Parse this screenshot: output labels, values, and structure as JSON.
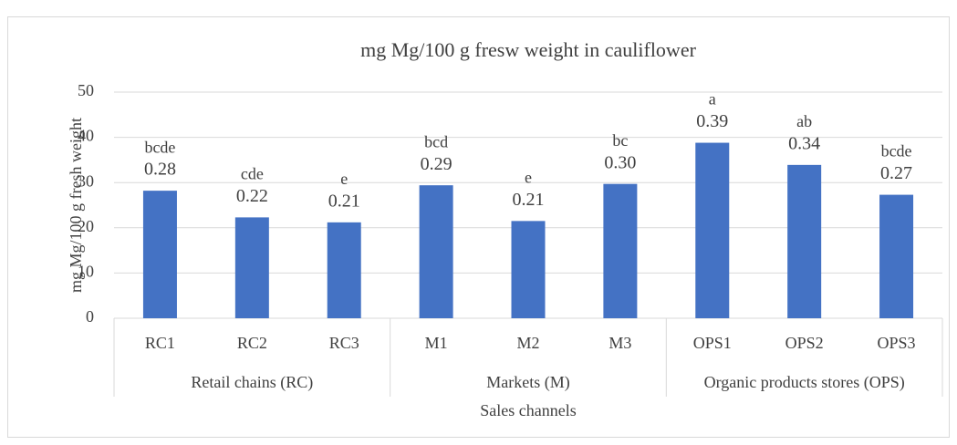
{
  "chart_data": {
    "type": "bar",
    "title": "mg Mg/100 g fresw weight in cauliflower",
    "x_label": "Sales channels",
    "y_label": "mg Mg/100 g fresh weight",
    "color": "#4472c4",
    "groups": [
      {
        "name": "Retail chains (RC)",
        "categories": [
          "RC1",
          "RC2",
          "RC3"
        ],
        "values": [
          28.2,
          22.3,
          21.2
        ],
        "value_labels": [
          "0.28",
          "0.22",
          "0.21"
        ],
        "letters": [
          "bcde",
          "cde",
          "e"
        ]
      },
      {
        "name": "Markets (M)",
        "categories": [
          "M1",
          "M2",
          "M3"
        ],
        "values": [
          29.4,
          21.5,
          29.7
        ],
        "value_labels": [
          "0.29",
          "0.21",
          "0.30"
        ],
        "letters": [
          "bcd",
          "e",
          "bc"
        ]
      },
      {
        "name": "Organic products stores (OPS)",
        "categories": [
          "OPS1",
          "OPS2",
          "OPS3"
        ],
        "values": [
          38.8,
          33.9,
          27.3
        ],
        "value_labels": [
          "0.39",
          "0.34",
          "0.27"
        ],
        "letters": [
          "a",
          "ab",
          "bcde"
        ]
      }
    ],
    "ylim": [
      0,
      50
    ],
    "yticks": [
      0,
      10,
      20,
      30,
      40,
      50
    ],
    "grid": true
  }
}
